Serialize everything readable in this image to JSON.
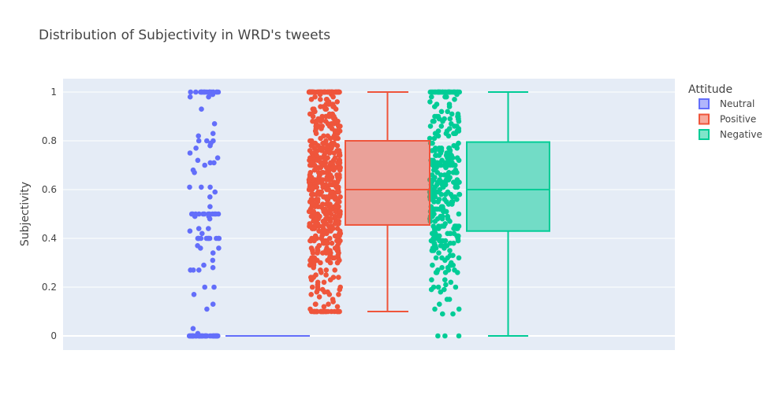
{
  "chart_data": {
    "type": "box",
    "title": "Distribution of Subjectivity in WRD's tweets",
    "xlabel": "",
    "ylabel": "Subjectivity",
    "ylim": [
      -0.06,
      1.05
    ],
    "y_ticks": [
      0,
      0.2,
      0.4,
      0.6,
      0.8,
      1
    ],
    "y_tick_labels": [
      "0",
      "0.2",
      "0.4",
      "0.6",
      "0.8",
      "1"
    ],
    "grid": true,
    "background": "#e5ecf6",
    "points_shown": "all (jittered beside each box)",
    "legend": {
      "title": "Attitude",
      "placement": "right",
      "entries": [
        "Neutral",
        "Positive",
        "Negative"
      ]
    },
    "series": [
      {
        "name": "Neutral",
        "color": "#636efa",
        "fill": "rgba(99,110,250,0.5)",
        "min": 0,
        "q1": 0,
        "median": 0,
        "q3": 0,
        "max": 0
      },
      {
        "name": "Positive",
        "color": "#ef553b",
        "fill": "rgba(239,85,59,0.5)",
        "min": 0.1,
        "q1": 0.455,
        "median": 0.6,
        "q3": 0.8,
        "max": 1
      },
      {
        "name": "Negative",
        "color": "#00cc96",
        "fill": "rgba(0,204,150,0.5)",
        "min": 0,
        "q1": 0.43,
        "median": 0.6,
        "q3": 0.795,
        "max": 1
      }
    ]
  }
}
